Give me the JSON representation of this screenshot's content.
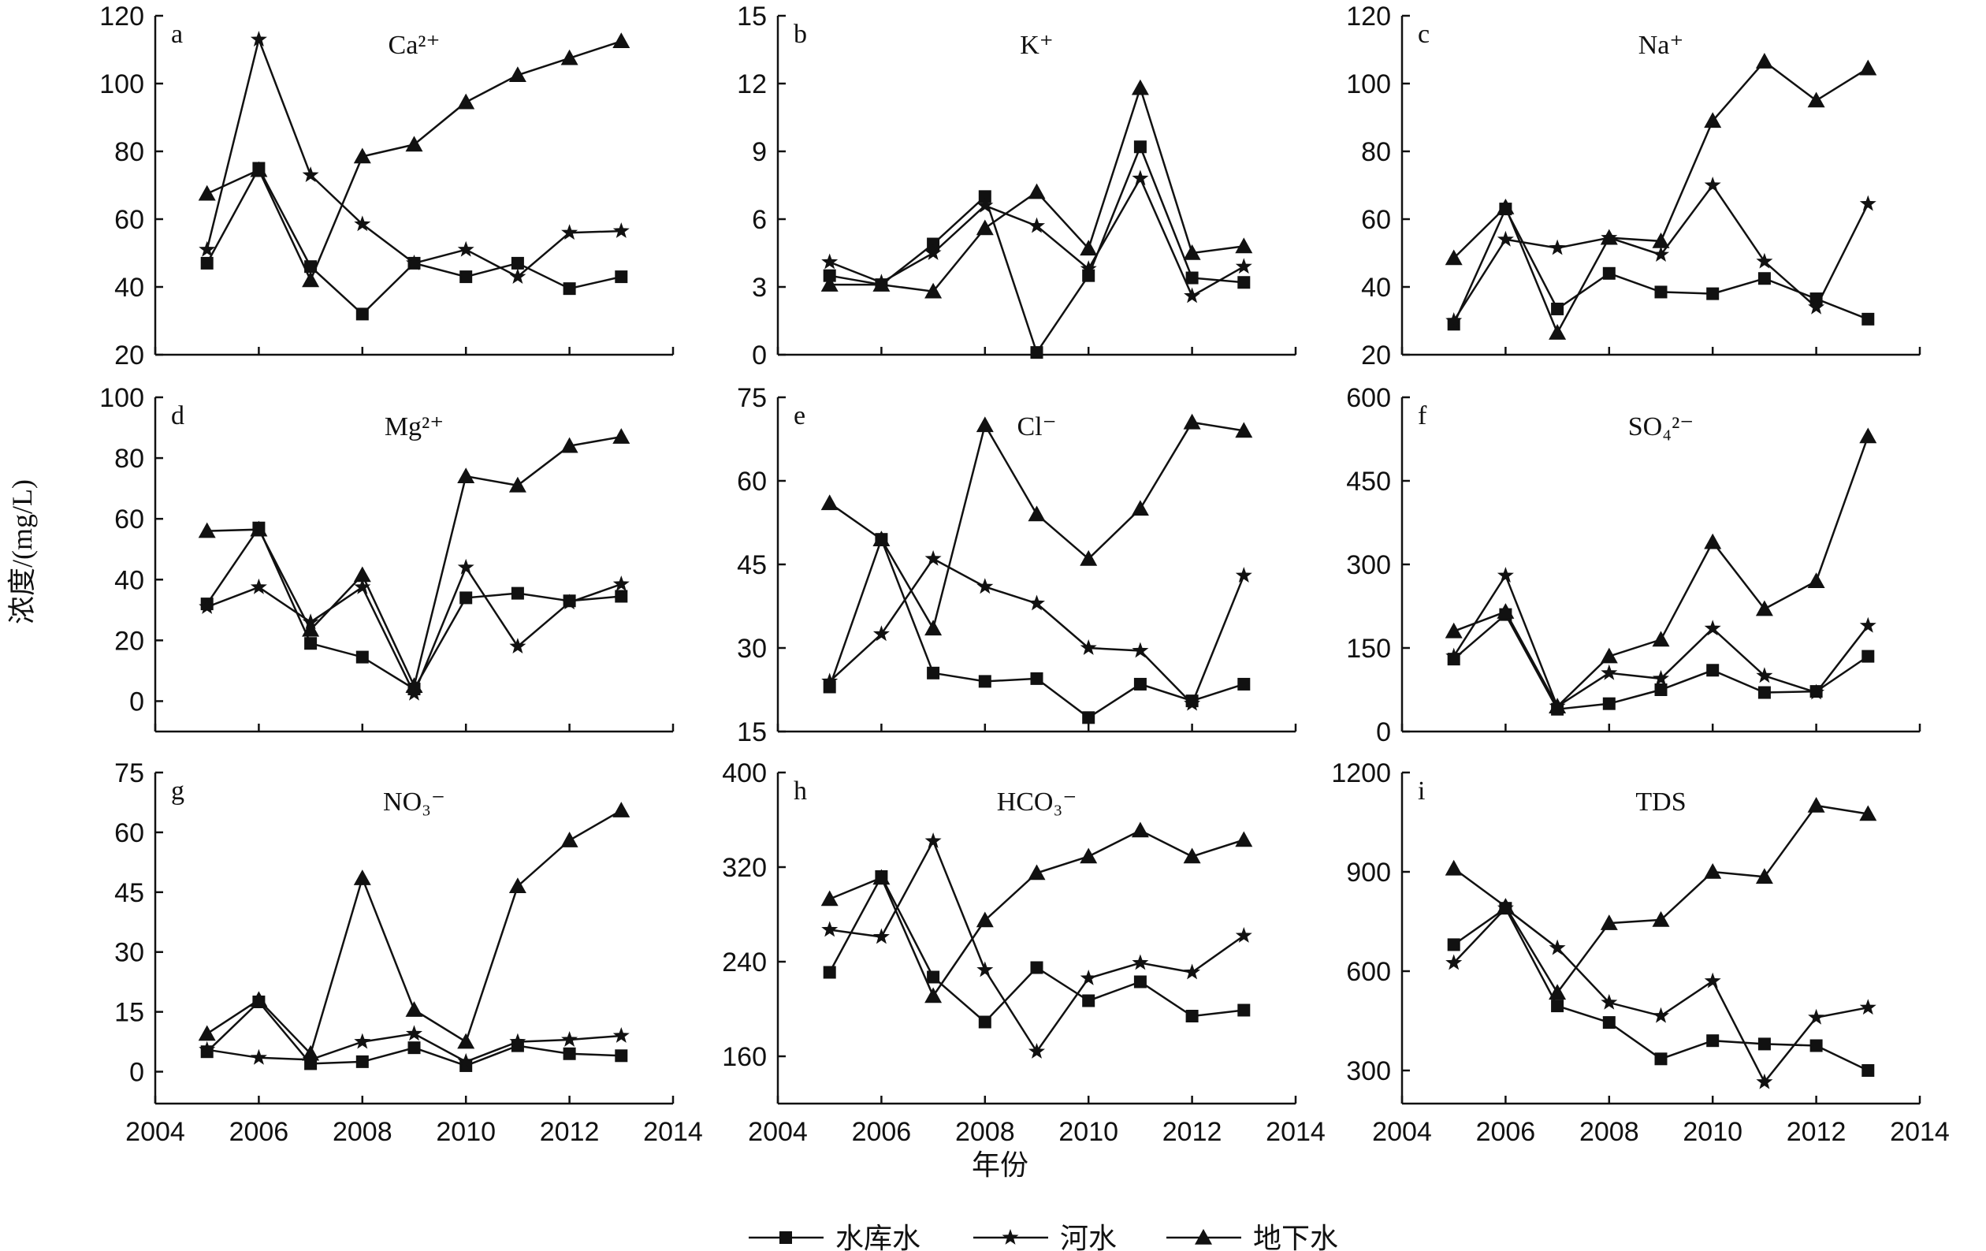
{
  "figure": {
    "ylabel": "浓度/(mg/L)",
    "xlabel": "年份"
  },
  "legend": [
    {
      "name": "水库水",
      "marker": "square"
    },
    {
      "name": "河水",
      "marker": "star"
    },
    {
      "name": "地下水",
      "marker": "triangle"
    }
  ],
  "chart_data": [
    {
      "type": "line",
      "panel": "a",
      "title": "Ca²⁺",
      "x": [
        2005,
        2006,
        2007,
        2008,
        2009,
        2010,
        2011,
        2012,
        2013
      ],
      "xlim": [
        2004,
        2014
      ],
      "xticks": [
        2004,
        2006,
        2008,
        2010,
        2012,
        2014
      ],
      "ylim": [
        20,
        120
      ],
      "yticks": [
        20,
        40,
        60,
        80,
        100,
        120
      ],
      "series": [
        {
          "name": "水库水",
          "values": [
            47,
            75,
            46,
            32,
            47,
            43,
            47,
            39.5,
            43
          ]
        },
        {
          "name": "河水",
          "values": [
            51,
            113,
            73,
            58.5,
            47,
            51,
            43,
            56,
            56.5
          ]
        },
        {
          "name": "地下水",
          "values": [
            67.5,
            74.5,
            42,
            78.5,
            82,
            94.5,
            102.5,
            107.5,
            112.5
          ]
        }
      ]
    },
    {
      "type": "line",
      "panel": "b",
      "title": "K⁺",
      "x": [
        2005,
        2006,
        2007,
        2008,
        2009,
        2010,
        2011,
        2012,
        2013
      ],
      "xlim": [
        2004,
        2014
      ],
      "xticks": [
        2004,
        2006,
        2008,
        2010,
        2012,
        2014
      ],
      "ylim": [
        0,
        15
      ],
      "yticks": [
        0,
        3,
        6,
        9,
        12,
        15
      ],
      "series": [
        {
          "name": "水库水",
          "values": [
            3.5,
            3.1,
            4.9,
            7.0,
            0.1,
            3.5,
            9.2,
            3.4,
            3.2
          ]
        },
        {
          "name": "河水",
          "values": [
            4.1,
            3.2,
            4.5,
            6.6,
            5.7,
            3.8,
            7.8,
            2.6,
            3.9
          ]
        },
        {
          "name": "地下水",
          "values": [
            3.1,
            3.1,
            2.8,
            5.6,
            7.2,
            4.7,
            11.8,
            4.5,
            4.8
          ]
        }
      ]
    },
    {
      "type": "line",
      "panel": "c",
      "title": "Na⁺",
      "x": [
        2005,
        2006,
        2007,
        2008,
        2009,
        2010,
        2011,
        2012,
        2013
      ],
      "xlim": [
        2004,
        2014
      ],
      "xticks": [
        2004,
        2006,
        2008,
        2010,
        2012,
        2014
      ],
      "ylim": [
        20,
        120
      ],
      "yticks": [
        20,
        40,
        60,
        80,
        100,
        120
      ],
      "series": [
        {
          "name": "水库水",
          "values": [
            29,
            63,
            33.5,
            44,
            38.5,
            38,
            42.5,
            36.5,
            30.5
          ]
        },
        {
          "name": "河水",
          "values": [
            30,
            54,
            51.5,
            54.5,
            49.5,
            70,
            47.5,
            34,
            64.5
          ]
        },
        {
          "name": "地下水",
          "values": [
            48.5,
            63.5,
            26.5,
            54.5,
            53.5,
            89,
            106.5,
            95,
            104.5
          ]
        }
      ]
    },
    {
      "type": "line",
      "panel": "d",
      "title": "Mg²⁺",
      "x": [
        2005,
        2006,
        2007,
        2008,
        2009,
        2010,
        2011,
        2012,
        2013
      ],
      "xlim": [
        2004,
        2014
      ],
      "xticks": [
        2004,
        2006,
        2008,
        2010,
        2012,
        2014
      ],
      "ylim": [
        -10,
        100
      ],
      "yticks": [
        0,
        20,
        40,
        60,
        80,
        100
      ],
      "series": [
        {
          "name": "水库水",
          "values": [
            32,
            57,
            19,
            14.5,
            4,
            34,
            35.5,
            33,
            34.5
          ]
        },
        {
          "name": "河水",
          "values": [
            31,
            37.5,
            26,
            37.5,
            2.5,
            44,
            18,
            32.5,
            38.5
          ]
        },
        {
          "name": "地下水",
          "values": [
            56,
            56.5,
            23.5,
            41.5,
            5,
            74,
            71,
            84,
            87
          ]
        }
      ]
    },
    {
      "type": "line",
      "panel": "e",
      "title": "Cl⁻",
      "x": [
        2005,
        2006,
        2007,
        2008,
        2009,
        2010,
        2011,
        2012,
        2013
      ],
      "xlim": [
        2004,
        2014
      ],
      "xticks": [
        2004,
        2006,
        2008,
        2010,
        2012,
        2014
      ],
      "ylim": [
        15,
        75
      ],
      "yticks": [
        15,
        30,
        45,
        60,
        75
      ],
      "series": [
        {
          "name": "水库水",
          "values": [
            23,
            49.5,
            25.5,
            24,
            24.5,
            17.5,
            23.5,
            20.5,
            23.5
          ]
        },
        {
          "name": "河水",
          "values": [
            24,
            32.5,
            46,
            41,
            38,
            30,
            29.5,
            20,
            43
          ]
        },
        {
          "name": "地下水",
          "values": [
            56,
            49.5,
            33.5,
            70,
            54,
            46,
            55,
            70.5,
            69
          ]
        }
      ]
    },
    {
      "type": "line",
      "panel": "f",
      "title": "SO₄²⁻",
      "x": [
        2005,
        2006,
        2007,
        2008,
        2009,
        2010,
        2011,
        2012,
        2013
      ],
      "xlim": [
        2004,
        2014
      ],
      "xticks": [
        2004,
        2006,
        2008,
        2010,
        2012,
        2014
      ],
      "ylim": [
        0,
        600
      ],
      "yticks": [
        0,
        150,
        300,
        450,
        600
      ],
      "series": [
        {
          "name": "水库水",
          "values": [
            130,
            210,
            40,
            50,
            75,
            110,
            70,
            72,
            135
          ]
        },
        {
          "name": "河水",
          "values": [
            135,
            280,
            45,
            105,
            95,
            185,
            100,
            70,
            190
          ]
        },
        {
          "name": "地下水",
          "values": [
            180,
            215,
            45,
            135,
            165,
            340,
            220,
            270,
            530
          ]
        }
      ]
    },
    {
      "type": "line",
      "panel": "g",
      "title": "NO₃⁻",
      "x": [
        2005,
        2006,
        2007,
        2008,
        2009,
        2010,
        2011,
        2012,
        2013
      ],
      "xlim": [
        2004,
        2014
      ],
      "xticks": [
        2004,
        2006,
        2008,
        2010,
        2012,
        2014
      ],
      "ylim": [
        -8,
        75
      ],
      "yticks": [
        0,
        15,
        30,
        45,
        60,
        75
      ],
      "series": [
        {
          "name": "水库水",
          "values": [
            5,
            17.5,
            2,
            2.5,
            6,
            1.5,
            6.5,
            4.5,
            4
          ]
        },
        {
          "name": "河水",
          "values": [
            5.5,
            3.5,
            3,
            7.5,
            9.5,
            2.5,
            7.5,
            8,
            9
          ]
        },
        {
          "name": "地下水",
          "values": [
            9.5,
            18,
            4.5,
            48.5,
            15.5,
            7.5,
            46.5,
            58,
            65.5
          ]
        }
      ]
    },
    {
      "type": "line",
      "panel": "h",
      "title": "HCO₃⁻",
      "x": [
        2005,
        2006,
        2007,
        2008,
        2009,
        2010,
        2011,
        2012,
        2013
      ],
      "xlim": [
        2004,
        2014
      ],
      "xticks": [
        2004,
        2006,
        2008,
        2010,
        2012,
        2014
      ],
      "ylim": [
        120,
        400
      ],
      "yticks": [
        160,
        240,
        320,
        400
      ],
      "series": [
        {
          "name": "水库水",
          "values": [
            231,
            312,
            227,
            189,
            235,
            207,
            223,
            194,
            199
          ]
        },
        {
          "name": "河水",
          "values": [
            267,
            261,
            342,
            233,
            164,
            226,
            239,
            231,
            262
          ]
        },
        {
          "name": "地下水",
          "values": [
            293,
            311,
            211,
            275,
            315,
            329,
            351,
            329,
            343
          ]
        }
      ]
    },
    {
      "type": "line",
      "panel": "i",
      "title": "TDS",
      "x": [
        2005,
        2006,
        2007,
        2008,
        2009,
        2010,
        2011,
        2012,
        2013
      ],
      "xlim": [
        2004,
        2014
      ],
      "xticks": [
        2004,
        2006,
        2008,
        2010,
        2012,
        2014
      ],
      "ylim": [
        200,
        1200
      ],
      "yticks": [
        300,
        600,
        900,
        1200
      ],
      "series": [
        {
          "name": "水库水",
          "values": [
            680,
            790,
            495,
            445,
            335,
            390,
            380,
            375,
            300
          ]
        },
        {
          "name": "河水",
          "values": [
            625,
            790,
            670,
            505,
            465,
            570,
            265,
            460,
            490
          ]
        },
        {
          "name": "地下水",
          "values": [
            910,
            795,
            535,
            745,
            755,
            900,
            885,
            1100,
            1075
          ]
        }
      ]
    }
  ]
}
